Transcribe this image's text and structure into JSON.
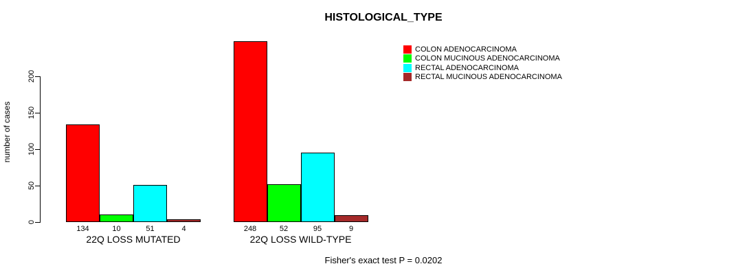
{
  "chart_data": {
    "type": "bar",
    "title": "HISTOLOGICAL_TYPE",
    "ylabel": "number of cases",
    "xlabel": "",
    "groups": [
      "22Q LOSS MUTATED",
      "22Q LOSS WILD-TYPE"
    ],
    "series": [
      {
        "name": "COLON ADENOCARCINOMA",
        "color": "#FF0000",
        "values": [
          134,
          248
        ]
      },
      {
        "name": "COLON MUCINOUS ADENOCARCINOMA",
        "color": "#00FF00",
        "values": [
          10,
          52
        ]
      },
      {
        "name": "RECTAL ADENOCARCINOMA",
        "color": "#00FFFF",
        "values": [
          51,
          95
        ]
      },
      {
        "name": "RECTAL MUCINOUS ADENOCARCINOMA",
        "color": "#A52A2A",
        "values": [
          4,
          9
        ]
      }
    ],
    "yticks": [
      0,
      50,
      100,
      150,
      200
    ],
    "ylim": [
      0,
      200
    ],
    "grid": false,
    "legend_position": "top-right",
    "bar_value_labels": true,
    "bar_border_color": "#000000",
    "footnote": "Fisher's exact test P = 0.0202"
  }
}
